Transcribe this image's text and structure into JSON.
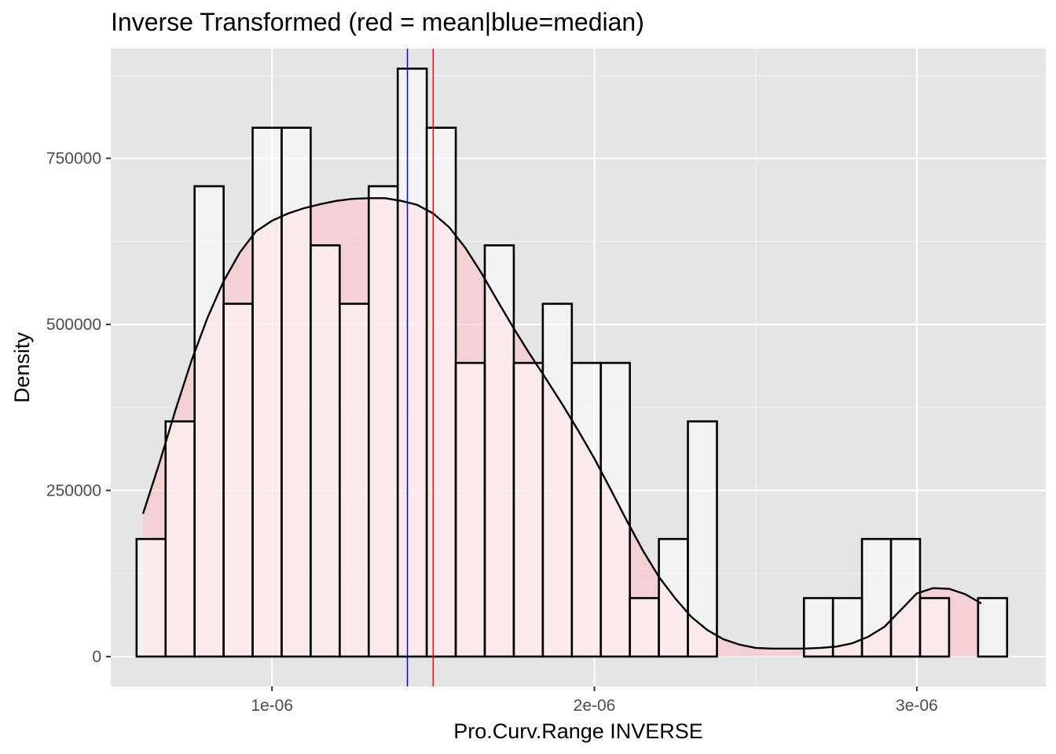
{
  "chart_data": {
    "type": "bar",
    "title": "Inverse Transformed (red = mean|blue=median)",
    "xlabel": "Pro.Curv.Range INVERSE",
    "ylabel": "Density",
    "xlim": [
      5e-07,
      3.4e-06
    ],
    "ylim": [
      -45000,
      915000
    ],
    "x_ticks": [
      {
        "value": 1e-06,
        "label": "1e-06"
      },
      {
        "value": 2e-06,
        "label": "2e-06"
      },
      {
        "value": 3e-06,
        "label": "3e-06"
      }
    ],
    "y_ticks": [
      {
        "value": 0,
        "label": "0"
      },
      {
        "value": 250000,
        "label": "250000"
      },
      {
        "value": 500000,
        "label": "500000"
      },
      {
        "value": 750000,
        "label": "750000"
      }
    ],
    "grid": true,
    "background_color": "#e5e5e5",
    "bar_fill_color": "#ffffff",
    "bar_outline_color": "#000000",
    "density_fill_color": "#ffc0cb",
    "density_line_color": "#000000",
    "histogram": {
      "bin_width": 9e-08,
      "bins": [
        {
          "x_start": 5.8e-07,
          "x_end": 6.7e-07,
          "density": 177000
        },
        {
          "x_start": 6.7e-07,
          "x_end": 7.6e-07,
          "density": 354000
        },
        {
          "x_start": 7.6e-07,
          "x_end": 8.5e-07,
          "density": 708000
        },
        {
          "x_start": 8.5e-07,
          "x_end": 9.4e-07,
          "density": 531000
        },
        {
          "x_start": 9.4e-07,
          "x_end": 1.03e-06,
          "density": 796000
        },
        {
          "x_start": 1.03e-06,
          "x_end": 1.12e-06,
          "density": 796000
        },
        {
          "x_start": 1.12e-06,
          "x_end": 1.21e-06,
          "density": 619000
        },
        {
          "x_start": 1.21e-06,
          "x_end": 1.3e-06,
          "density": 531000
        },
        {
          "x_start": 1.3e-06,
          "x_end": 1.39e-06,
          "density": 708000
        },
        {
          "x_start": 1.39e-06,
          "x_end": 1.48e-06,
          "density": 885000
        },
        {
          "x_start": 1.48e-06,
          "x_end": 1.57e-06,
          "density": 796000
        },
        {
          "x_start": 1.57e-06,
          "x_end": 1.66e-06,
          "density": 442000
        },
        {
          "x_start": 1.66e-06,
          "x_end": 1.75e-06,
          "density": 619000
        },
        {
          "x_start": 1.75e-06,
          "x_end": 1.84e-06,
          "density": 442000
        },
        {
          "x_start": 1.84e-06,
          "x_end": 1.93e-06,
          "density": 531000
        },
        {
          "x_start": 1.93e-06,
          "x_end": 2.02e-06,
          "density": 442000
        },
        {
          "x_start": 2.02e-06,
          "x_end": 2.11e-06,
          "density": 442000
        },
        {
          "x_start": 2.11e-06,
          "x_end": 2.2e-06,
          "density": 88000
        },
        {
          "x_start": 2.2e-06,
          "x_end": 2.29e-06,
          "density": 177000
        },
        {
          "x_start": 2.29e-06,
          "x_end": 2.38e-06,
          "density": 354000
        },
        {
          "x_start": 2.38e-06,
          "x_end": 2.47e-06,
          "density": 0
        },
        {
          "x_start": 2.47e-06,
          "x_end": 2.56e-06,
          "density": 0
        },
        {
          "x_start": 2.56e-06,
          "x_end": 2.65e-06,
          "density": 0
        },
        {
          "x_start": 2.65e-06,
          "x_end": 2.74e-06,
          "density": 88000
        },
        {
          "x_start": 2.74e-06,
          "x_end": 2.83e-06,
          "density": 88000
        },
        {
          "x_start": 2.83e-06,
          "x_end": 2.92e-06,
          "density": 177000
        },
        {
          "x_start": 2.92e-06,
          "x_end": 3.01e-06,
          "density": 177000
        },
        {
          "x_start": 3.01e-06,
          "x_end": 3.1e-06,
          "density": 88000
        },
        {
          "x_start": 3.1e-06,
          "x_end": 3.19e-06,
          "density": 0
        },
        {
          "x_start": 3.19e-06,
          "x_end": 3.28e-06,
          "density": 88000
        }
      ]
    },
    "density_curve": {
      "x": [
        6e-07,
        6.5e-07,
        7e-07,
        7.5e-07,
        8e-07,
        8.5e-07,
        9e-07,
        9.5e-07,
        1e-06,
        1.05e-06,
        1.1e-06,
        1.15e-06,
        1.2e-06,
        1.25e-06,
        1.3e-06,
        1.35e-06,
        1.4e-06,
        1.45e-06,
        1.5e-06,
        1.55e-06,
        1.6e-06,
        1.65e-06,
        1.7e-06,
        1.75e-06,
        1.8e-06,
        1.85e-06,
        1.9e-06,
        1.95e-06,
        2e-06,
        2.05e-06,
        2.1e-06,
        2.15e-06,
        2.2e-06,
        2.25e-06,
        2.3e-06,
        2.35e-06,
        2.4e-06,
        2.45e-06,
        2.5e-06,
        2.55e-06,
        2.6e-06,
        2.65e-06,
        2.7e-06,
        2.75e-06,
        2.8e-06,
        2.85e-06,
        2.9e-06,
        2.95e-06,
        3e-06,
        3.05e-06,
        3.1e-06,
        3.15e-06,
        3.2e-06
      ],
      "y": [
        215000,
        290000,
        370000,
        445000,
        510000,
        565000,
        608000,
        640000,
        656000,
        667000,
        675000,
        681000,
        686000,
        689000,
        690000,
        690000,
        686000,
        680000,
        667000,
        646000,
        615000,
        577000,
        535000,
        494000,
        455000,
        418000,
        380000,
        340000,
        298000,
        252000,
        205000,
        160000,
        120000,
        88000,
        60000,
        40000,
        26000,
        18000,
        13000,
        12000,
        12000,
        12000,
        13000,
        15000,
        20000,
        30000,
        45000,
        70000,
        95000,
        103000,
        102000,
        94000,
        80000
      ]
    },
    "reference_lines": [
      {
        "name": "median",
        "x": 1.42e-06,
        "color": "#0000ff"
      },
      {
        "name": "mean",
        "x": 1.5e-06,
        "color": "#ff0000"
      }
    ]
  }
}
